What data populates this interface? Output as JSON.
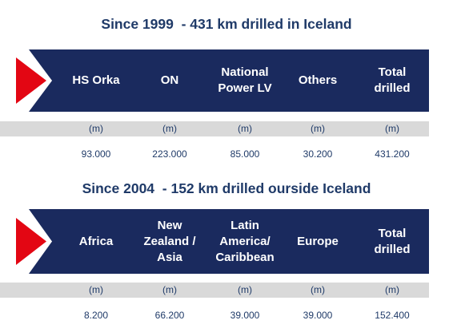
{
  "sections": [
    {
      "title": "Since 1999  - 431 km drilled in Iceland",
      "headers": [
        "HS Orka",
        "ON",
        "National\nPower LV",
        "Others",
        "Total\ndrilled"
      ],
      "units": [
        "(m)",
        "(m)",
        "(m)",
        "(m)",
        "(m)"
      ],
      "values": [
        "93.000",
        "223.000",
        "85.000",
        "30.200",
        "431.200"
      ]
    },
    {
      "title": "Since 2004  - 152 km drilled ourside Iceland",
      "headers": [
        "Africa",
        "New\nZealand /\nAsia",
        "Latin\nAmerica/\nCaribbean",
        "Europe",
        "Total\ndrilled"
      ],
      "units": [
        "(m)",
        "(m)",
        "(m)",
        "(m)",
        "(m)"
      ],
      "values": [
        "8.200",
        "66.200",
        "39.000",
        "39.000",
        "152.400"
      ]
    }
  ],
  "colors": {
    "navy": "#1a2a5e",
    "red": "#e30613",
    "title_blue": "#1f3a68",
    "strip_grey": "#d9d9d9"
  }
}
